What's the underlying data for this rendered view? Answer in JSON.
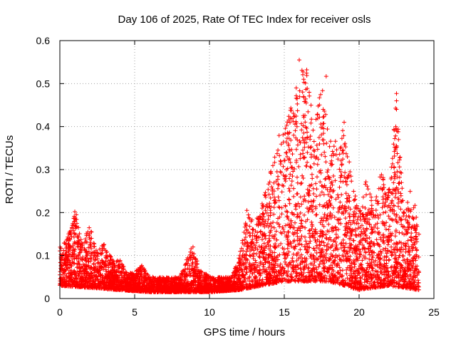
{
  "chart_data": {
    "type": "scatter",
    "title": "Day 106 of 2025, Rate Of TEC Index for receiver osls",
    "xlabel": "GPS time / hours",
    "ylabel": "ROTI / TECUs",
    "xlim": [
      0,
      25
    ],
    "ylim": [
      0,
      0.6
    ],
    "xticks": [
      0,
      5,
      10,
      15,
      20,
      25
    ],
    "yticks": [
      0,
      0.1,
      0.2,
      0.3,
      0.4,
      0.5,
      0.6
    ],
    "xtick_labels": [
      "0",
      "5",
      "10",
      "15",
      "20",
      "25"
    ],
    "ytick_labels": [
      "0",
      "0.1",
      "0.2",
      "0.3",
      "0.4",
      "0.5",
      "0.6"
    ],
    "grid": true,
    "marker": "+",
    "color": "#ff0000",
    "envelope": [
      {
        "x": 0.0,
        "y": 0.12
      },
      {
        "x": 0.5,
        "y": 0.14
      },
      {
        "x": 1.0,
        "y": 0.2
      },
      {
        "x": 1.5,
        "y": 0.13
      },
      {
        "x": 2.0,
        "y": 0.17
      },
      {
        "x": 2.5,
        "y": 0.11
      },
      {
        "x": 3.0,
        "y": 0.13
      },
      {
        "x": 3.5,
        "y": 0.09
      },
      {
        "x": 4.0,
        "y": 0.09
      },
      {
        "x": 4.5,
        "y": 0.06
      },
      {
        "x": 5.0,
        "y": 0.06
      },
      {
        "x": 5.5,
        "y": 0.08
      },
      {
        "x": 6.0,
        "y": 0.05
      },
      {
        "x": 7.0,
        "y": 0.05
      },
      {
        "x": 8.0,
        "y": 0.05
      },
      {
        "x": 8.8,
        "y": 0.12
      },
      {
        "x": 9.5,
        "y": 0.06
      },
      {
        "x": 10.5,
        "y": 0.05
      },
      {
        "x": 11.5,
        "y": 0.05
      },
      {
        "x": 12.0,
        "y": 0.1
      },
      {
        "x": 12.5,
        "y": 0.2
      },
      {
        "x": 13.0,
        "y": 0.18
      },
      {
        "x": 13.5,
        "y": 0.22
      },
      {
        "x": 14.0,
        "y": 0.28
      },
      {
        "x": 14.5,
        "y": 0.38
      },
      {
        "x": 15.0,
        "y": 0.4
      },
      {
        "x": 15.5,
        "y": 0.45
      },
      {
        "x": 16.0,
        "y": 0.55
      },
      {
        "x": 16.5,
        "y": 0.53
      },
      {
        "x": 17.0,
        "y": 0.4
      },
      {
        "x": 17.5,
        "y": 0.5
      },
      {
        "x": 18.0,
        "y": 0.38
      },
      {
        "x": 18.5,
        "y": 0.37
      },
      {
        "x": 19.0,
        "y": 0.4
      },
      {
        "x": 19.5,
        "y": 0.28
      },
      {
        "x": 20.0,
        "y": 0.2
      },
      {
        "x": 20.5,
        "y": 0.28
      },
      {
        "x": 21.0,
        "y": 0.22
      },
      {
        "x": 21.5,
        "y": 0.3
      },
      {
        "x": 22.0,
        "y": 0.26
      },
      {
        "x": 22.5,
        "y": 0.47
      },
      {
        "x": 23.0,
        "y": 0.2
      },
      {
        "x": 23.5,
        "y": 0.26
      },
      {
        "x": 24.0,
        "y": 0.18
      }
    ],
    "baseline": [
      {
        "x": 0.0,
        "y": 0.03
      },
      {
        "x": 4.0,
        "y": 0.02
      },
      {
        "x": 6.0,
        "y": 0.015
      },
      {
        "x": 10.0,
        "y": 0.015
      },
      {
        "x": 12.0,
        "y": 0.02
      },
      {
        "x": 13.5,
        "y": 0.03
      },
      {
        "x": 15.0,
        "y": 0.04
      },
      {
        "x": 18.0,
        "y": 0.04
      },
      {
        "x": 20.0,
        "y": 0.02
      },
      {
        "x": 22.0,
        "y": 0.03
      },
      {
        "x": 24.0,
        "y": 0.02
      }
    ],
    "outliers": [
      {
        "x": 16.0,
        "y": 0.555
      },
      {
        "x": 16.5,
        "y": 0.532
      },
      {
        "x": 17.8,
        "y": 0.517
      },
      {
        "x": 15.8,
        "y": 0.49
      },
      {
        "x": 22.5,
        "y": 0.477
      },
      {
        "x": 22.5,
        "y": 0.46
      },
      {
        "x": 22.5,
        "y": 0.44
      },
      {
        "x": 22.45,
        "y": 0.4
      },
      {
        "x": 22.45,
        "y": 0.35
      },
      {
        "x": 22.5,
        "y": 0.355
      },
      {
        "x": 1.0,
        "y": 0.202
      },
      {
        "x": 1.1,
        "y": 0.195
      },
      {
        "x": 8.9,
        "y": 0.12
      },
      {
        "x": 12.5,
        "y": 0.205
      },
      {
        "x": 17.6,
        "y": 0.44
      },
      {
        "x": 16.3,
        "y": 0.47
      },
      {
        "x": 19.0,
        "y": 0.41
      },
      {
        "x": 15.4,
        "y": 0.42
      }
    ],
    "points_per_hour": 230
  }
}
